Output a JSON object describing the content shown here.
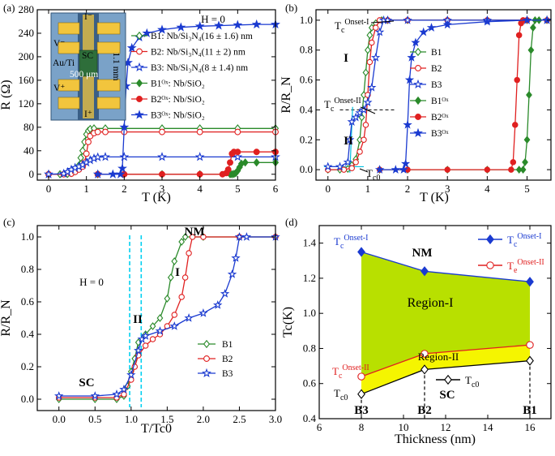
{
  "figure": {
    "panels": [
      "(a)",
      "(b)",
      "(c)",
      "(d)"
    ]
  },
  "chart_data": [
    {
      "id": "a",
      "type": "line",
      "panel_label": "(a)",
      "xlabel": "T (K)",
      "ylabel": "R (Ω)",
      "xlim": [
        -0.3,
        6
      ],
      "ylim": [
        -10,
        280
      ],
      "xticks": [
        0,
        1,
        2,
        3,
        4,
        5,
        6
      ],
      "yticks": [
        0,
        40,
        80,
        120,
        160,
        200,
        240,
        280
      ],
      "annotation": "H = 0",
      "inset": {
        "labels": [
          "I⁻",
          "V⁻",
          "SC",
          "Au/Ti",
          "500 μm",
          "1.1 mm",
          "V⁺",
          "I⁺"
        ]
      },
      "series": [
        {
          "name": "B1: Nb/Si₃N₄(16 ± 1.6) nm",
          "color": "#2a8a2a",
          "marker": "diamond-open",
          "x": [
            0,
            0.3,
            0.5,
            0.6,
            0.7,
            0.8,
            0.85,
            0.9,
            0.95,
            1.0,
            1.05,
            1.1,
            1.2,
            1.5,
            2,
            3,
            4,
            5,
            6
          ],
          "y": [
            0,
            0,
            0.5,
            2,
            5,
            15,
            28,
            40,
            55,
            68,
            74,
            77,
            78,
            78,
            78,
            78,
            78,
            78,
            78
          ]
        },
        {
          "name": "B2: Nb/Si₃N₄(11 ± 2) nm",
          "color": "#e02020",
          "marker": "circle-open",
          "x": [
            0,
            0.4,
            0.6,
            0.7,
            0.8,
            0.9,
            0.95,
            1.0,
            1.05,
            1.1,
            1.2,
            1.3,
            1.5,
            2,
            3,
            4,
            5,
            6
          ],
          "y": [
            0,
            0,
            1,
            4,
            8,
            13,
            20,
            35,
            55,
            65,
            70,
            72,
            72,
            72,
            72,
            72,
            72,
            72
          ]
        },
        {
          "name": "B3: Nb/Si₃N₄(8 ± 1.4) nm",
          "color": "#1a3ad0",
          "marker": "star-open",
          "x": [
            0,
            0.4,
            0.5,
            0.6,
            0.7,
            0.8,
            0.9,
            1.0,
            1.1,
            1.2,
            1.3,
            1.5,
            2,
            3,
            4,
            5,
            6
          ],
          "y": [
            0,
            1,
            4,
            8,
            11,
            13,
            16,
            20,
            24,
            27,
            29,
            29.5,
            29.5,
            29.5,
            29.5,
            29.5,
            29.5
          ]
        },
        {
          "name": "B1ᴼˣ: Nb/SiO₂",
          "color": "#2a8a2a",
          "marker": "diamond-filled",
          "x": [
            1.3,
            2,
            3,
            4,
            4.8,
            4.85,
            4.9,
            4.95,
            5.0,
            5.05,
            5.1,
            5.2,
            5.5,
            6
          ],
          "y": [
            0,
            0,
            0,
            0,
            0,
            0,
            0.5,
            2,
            6,
            12,
            18,
            20,
            20,
            20
          ]
        },
        {
          "name": "B2ᴼˣ: Nb/SiO₂",
          "color": "#e02020",
          "marker": "circle-filled",
          "x": [
            1.3,
            2,
            3,
            4,
            4.6,
            4.7,
            4.75,
            4.8,
            4.85,
            4.9,
            5.0,
            5.5,
            6
          ],
          "y": [
            0,
            0,
            0,
            0,
            0,
            2,
            8,
            20,
            35,
            38,
            38,
            38,
            38
          ]
        },
        {
          "name": "B3ᴼˣ: Nb/SiO₂",
          "color": "#1a3ad0",
          "marker": "star-filled",
          "x": [
            1.3,
            1.7,
            1.9,
            1.95,
            2.0,
            2.05,
            2.1,
            2.2,
            2.4,
            2.6,
            3,
            3.5,
            4,
            4.5,
            5,
            5.5,
            6
          ],
          "y": [
            0,
            0,
            0,
            10,
            80,
            150,
            190,
            215,
            233,
            240,
            246,
            250,
            252,
            253,
            254,
            255,
            255
          ]
        }
      ]
    },
    {
      "id": "b",
      "type": "line",
      "panel_label": "(b)",
      "xlabel": "T (K)",
      "ylabel": "R/R_N",
      "xlim": [
        -0.3,
        5.6
      ],
      "ylim": [
        -0.07,
        1.07
      ],
      "xticks": [
        0,
        1,
        2,
        3,
        4,
        5
      ],
      "yticks": [
        0.0,
        0.2,
        0.4,
        0.6,
        0.8,
        1.0
      ],
      "annotations": [
        "Tc Onset-I",
        "Tc Onset-II",
        "Tc0",
        "I",
        "II"
      ],
      "series": [
        {
          "name": "B1",
          "color": "#2a8a2a",
          "marker": "diamond-open",
          "x": [
            0,
            0.3,
            0.5,
            0.6,
            0.7,
            0.8,
            0.85,
            0.9,
            0.95,
            1.0,
            1.05,
            1.1,
            1.2,
            1.35,
            1.5,
            2,
            3,
            4,
            5,
            5.5
          ],
          "y": [
            0,
            0,
            0.005,
            0.03,
            0.07,
            0.2,
            0.35,
            0.5,
            0.65,
            0.8,
            0.9,
            0.95,
            0.98,
            1,
            1,
            1,
            1,
            1,
            1,
            1
          ]
        },
        {
          "name": "B2",
          "color": "#e02020",
          "marker": "circle-open",
          "x": [
            0,
            0.4,
            0.6,
            0.7,
            0.8,
            0.9,
            0.95,
            1.0,
            1.05,
            1.1,
            1.2,
            1.3,
            1.5,
            2,
            3,
            4,
            5,
            5.5
          ],
          "y": [
            0,
            0,
            0.01,
            0.05,
            0.12,
            0.2,
            0.3,
            0.5,
            0.72,
            0.85,
            0.95,
            1,
            1,
            1,
            1,
            1,
            1,
            1
          ]
        },
        {
          "name": "B3",
          "color": "#1a3ad0",
          "marker": "star-open",
          "x": [
            0,
            0.3,
            0.5,
            0.55,
            0.6,
            0.7,
            0.8,
            0.9,
            1.0,
            1.1,
            1.2,
            1.3,
            1.4,
            1.5,
            2,
            3,
            4,
            5,
            5.5
          ],
          "y": [
            0.02,
            0.02,
            0.05,
            0.2,
            0.32,
            0.35,
            0.38,
            0.4,
            0.45,
            0.55,
            0.75,
            0.92,
            1,
            1,
            1,
            1,
            1,
            1,
            1
          ]
        },
        {
          "name": "B1ᴼˣ",
          "color": "#2a8a2a",
          "marker": "diamond-filled",
          "x": [
            1.3,
            2,
            3,
            4,
            4.8,
            4.9,
            4.95,
            5.0,
            5.05,
            5.1,
            5.15,
            5.2,
            5.3
          ],
          "y": [
            0,
            0,
            0,
            0,
            0,
            0,
            0.05,
            0.2,
            0.5,
            0.8,
            0.95,
            1,
            1
          ]
        },
        {
          "name": "B2ᴼˣ",
          "color": "#e02020",
          "marker": "circle-filled",
          "x": [
            1.3,
            2,
            3,
            4,
            4.6,
            4.65,
            4.7,
            4.75,
            4.8,
            4.85,
            4.9,
            5.0
          ],
          "y": [
            0,
            0,
            0,
            0,
            0,
            0.05,
            0.3,
            0.6,
            0.9,
            0.98,
            1,
            1
          ]
        },
        {
          "name": "B3ᴼˣ",
          "color": "#1a3ad0",
          "marker": "star-filled",
          "x": [
            1.3,
            1.7,
            1.9,
            1.95,
            2.0,
            2.05,
            2.1,
            2.2,
            2.4,
            2.6,
            3,
            4,
            5,
            5.5
          ],
          "y": [
            0,
            0,
            0,
            0.04,
            0.3,
            0.6,
            0.75,
            0.85,
            0.92,
            0.95,
            0.97,
            0.99,
            1,
            1
          ]
        }
      ]
    },
    {
      "id": "c",
      "type": "line",
      "panel_label": "(c)",
      "xlabel": "T/Tc0",
      "ylabel": "R/R_N",
      "xlim": [
        -0.3,
        3.0
      ],
      "ylim": [
        -0.07,
        1.07
      ],
      "xticks": [
        0.0,
        0.5,
        1.0,
        1.5,
        2.0,
        2.5,
        3.0
      ],
      "yticks": [
        0.0,
        0.2,
        0.4,
        0.6,
        0.8,
        1.0
      ],
      "annotations": [
        "H = 0",
        "SC",
        "NM",
        "I",
        "II"
      ],
      "series": [
        {
          "name": "B1",
          "color": "#2a8a2a",
          "marker": "diamond-open",
          "x": [
            0,
            0.5,
            0.8,
            0.9,
            0.95,
            1.0,
            1.05,
            1.1,
            1.2,
            1.3,
            1.4,
            1.5,
            1.55,
            1.6,
            1.7,
            1.75,
            2,
            2.5,
            3
          ],
          "y": [
            0,
            0,
            0,
            0.02,
            0.08,
            0.17,
            0.25,
            0.35,
            0.4,
            0.45,
            0.5,
            0.62,
            0.75,
            0.85,
            0.97,
            1,
            1,
            1,
            1
          ]
        },
        {
          "name": "B2",
          "color": "#e02020",
          "marker": "circle-open",
          "x": [
            0,
            0.5,
            0.8,
            0.9,
            1.0,
            1.05,
            1.1,
            1.2,
            1.3,
            1.4,
            1.5,
            1.6,
            1.7,
            1.75,
            1.8,
            1.85,
            2,
            2.5,
            3
          ],
          "y": [
            0.01,
            0.01,
            0.01,
            0.03,
            0.12,
            0.2,
            0.27,
            0.33,
            0.37,
            0.4,
            0.45,
            0.52,
            0.63,
            0.75,
            0.9,
            1,
            1,
            1,
            1
          ]
        },
        {
          "name": "B3",
          "color": "#1a3ad0",
          "marker": "star-open",
          "x": [
            0,
            0.5,
            0.8,
            0.9,
            1.0,
            1.1,
            1.15,
            1.2,
            1.4,
            1.6,
            1.8,
            2.0,
            2.2,
            2.3,
            2.4,
            2.45,
            2.5,
            2.6,
            3
          ],
          "y": [
            0.02,
            0.02,
            0.03,
            0.06,
            0.15,
            0.3,
            0.37,
            0.39,
            0.42,
            0.45,
            0.5,
            0.53,
            0.58,
            0.65,
            0.77,
            0.87,
            1,
            1,
            1
          ]
        }
      ],
      "vlines": [
        0.98,
        1.14
      ]
    },
    {
      "id": "d",
      "type": "line",
      "panel_label": "(d)",
      "xlabel": "Thickness (nm)",
      "ylabel": "Tc(K)",
      "xlim": [
        6,
        17
      ],
      "ylim": [
        0.4,
        1.5
      ],
      "xticks": [
        6,
        8,
        10,
        12,
        14,
        16
      ],
      "yticks": [
        0.4,
        0.6,
        0.8,
        1.0,
        1.2,
        1.4
      ],
      "annotations": [
        "NM",
        "Region-I",
        "Region-II",
        "SC",
        "B3",
        "B2",
        "B1"
      ],
      "series": [
        {
          "name": "Tc Onset-I",
          "color": "#1a3ad0",
          "marker": "diamond-filled",
          "x": [
            8,
            11,
            16
          ],
          "y": [
            1.35,
            1.24,
            1.18
          ]
        },
        {
          "name": "Tc Onset-II",
          "color": "#e02020",
          "marker": "circle-open",
          "x": [
            8,
            11,
            16
          ],
          "y": [
            0.64,
            0.77,
            0.82
          ]
        },
        {
          "name": "Tc0",
          "color": "#000000",
          "marker": "diamond-open",
          "x": [
            8,
            11,
            16
          ],
          "y": [
            0.54,
            0.68,
            0.73
          ]
        }
      ],
      "region_colors": {
        "region_1": "#b8e000",
        "region_2": "#f5f500"
      }
    }
  ]
}
